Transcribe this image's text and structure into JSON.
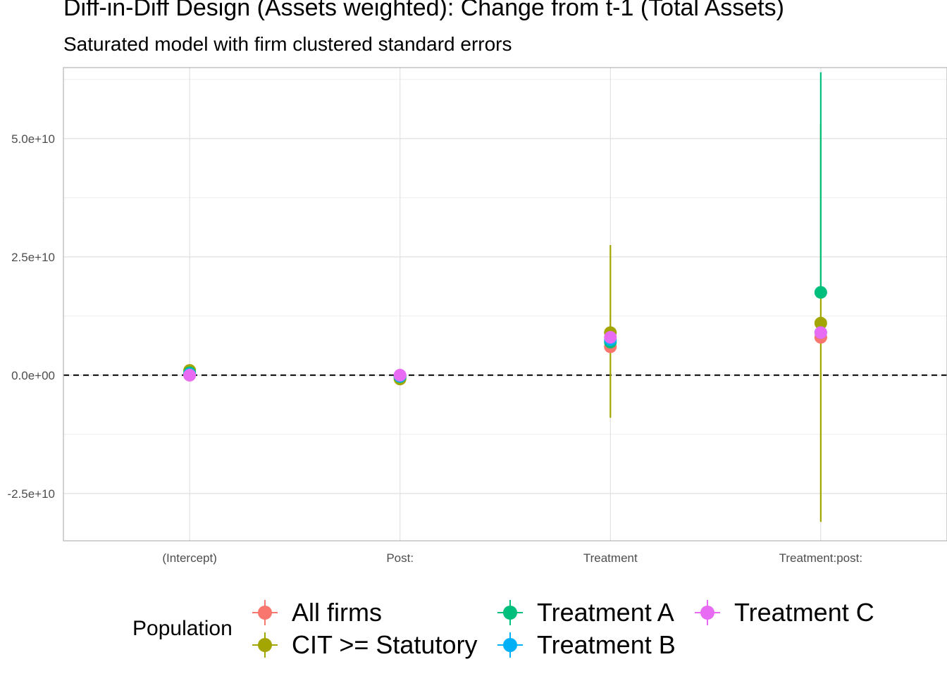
{
  "chart_data": {
    "type": "scatter",
    "title": "Diff-in-Diff Design (Assets weighted): Change from t-1 (Total Assets)",
    "subtitle": "Saturated model with firm clustered standard errors",
    "xlabel": "",
    "ylabel": "",
    "categories": [
      "(Intercept)",
      "Post:",
      "Treatment",
      "Treatment:post:"
    ],
    "y_ticks": [
      -25000000000,
      0,
      25000000000,
      50000000000
    ],
    "y_tick_labels": [
      "-2.5e+10",
      "0.0e+00",
      "2.5e+10",
      "5.0e+10"
    ],
    "ylim": [
      -35000000000,
      65000000000
    ],
    "reference_line": {
      "y": 0,
      "style": "dashed",
      "color": "#000000"
    },
    "grid": true,
    "legend": {
      "title": "Population",
      "placement": "bottom"
    },
    "series": [
      {
        "name": "All firms",
        "color": "#F8766D",
        "values": [
          0,
          -500000000,
          6000000000,
          8000000000
        ],
        "lower": [
          0,
          -500000000,
          6000000000,
          8000000000
        ],
        "upper": [
          0,
          -500000000,
          6000000000,
          8000000000
        ]
      },
      {
        "name": "CIT >= Statutory",
        "color": "#A3A500",
        "values": [
          1000000000,
          -800000000,
          9000000000,
          11000000000
        ],
        "lower": [
          1000000000,
          -800000000,
          -9000000000,
          -31000000000
        ],
        "upper": [
          1000000000,
          -800000000,
          27500000000,
          53000000000
        ]
      },
      {
        "name": "Treatment A",
        "color": "#00BF7D",
        "values": [
          500000000,
          -300000000,
          7000000000,
          17500000000
        ],
        "lower": [
          500000000,
          -300000000,
          7000000000,
          17500000000
        ],
        "upper": [
          500000000,
          -300000000,
          7000000000,
          64000000000
        ]
      },
      {
        "name": "Treatment B",
        "color": "#00B0F6",
        "values": [
          200000000,
          -200000000,
          7500000000,
          9000000000
        ],
        "lower": [
          200000000,
          -200000000,
          7500000000,
          9000000000
        ],
        "upper": [
          200000000,
          -200000000,
          7500000000,
          9000000000
        ]
      },
      {
        "name": "Treatment C",
        "color": "#E76BF3",
        "values": [
          0,
          0,
          8000000000,
          9000000000
        ],
        "lower": [
          0,
          0,
          8000000000,
          9000000000
        ],
        "upper": [
          0,
          0,
          8000000000,
          9000000000
        ]
      }
    ]
  }
}
